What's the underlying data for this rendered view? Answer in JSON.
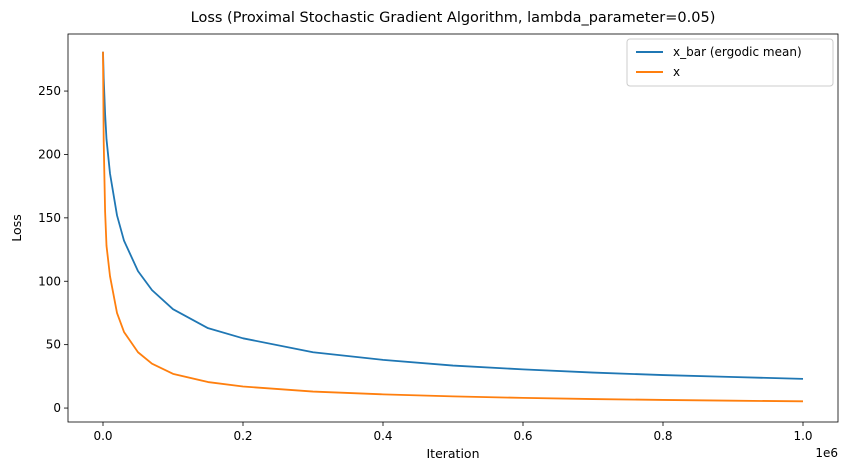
{
  "chart_data": {
    "type": "line",
    "title": "Loss (Proximal Stochastic Gradient Algorithm, lambda_parameter=0.05)",
    "xlabel": "Iteration",
    "ylabel": "Loss",
    "x_offset_label": "1e6",
    "xlim": [
      -0.05,
      1.05
    ],
    "ylim": [
      -11,
      295
    ],
    "x_ticks": [
      0.0,
      0.2,
      0.4,
      0.6,
      0.8,
      1.0
    ],
    "x_tick_labels": [
      "0.0",
      "0.2",
      "0.4",
      "0.6",
      "0.8",
      "1.0"
    ],
    "y_ticks": [
      0,
      50,
      100,
      150,
      200,
      250
    ],
    "y_tick_labels": [
      "0",
      "50",
      "100",
      "150",
      "200",
      "250"
    ],
    "grid": false,
    "legend_position": "top-right",
    "x": [
      0.0,
      0.001,
      0.003,
      0.005,
      0.01,
      0.02,
      0.03,
      0.05,
      0.07,
      0.1,
      0.15,
      0.2,
      0.3,
      0.4,
      0.5,
      0.6,
      0.7,
      0.8,
      0.9,
      1.0
    ],
    "series": [
      {
        "name": "x_bar (ergodic mean)",
        "color": "#1f77b4",
        "values": [
          281,
          260,
          232,
          212,
          185,
          152,
          132,
          108,
          93,
          78,
          63,
          55,
          44,
          38,
          33.5,
          30.5,
          28,
          26,
          24.5,
          23
        ]
      },
      {
        "name": "x",
        "color": "#ff7f0e",
        "values": [
          281,
          210,
          155,
          128,
          104,
          75,
          60,
          44,
          35,
          27,
          20.5,
          17,
          13,
          10.8,
          9.2,
          8,
          7.1,
          6.4,
          5.8,
          5.3
        ]
      }
    ]
  }
}
